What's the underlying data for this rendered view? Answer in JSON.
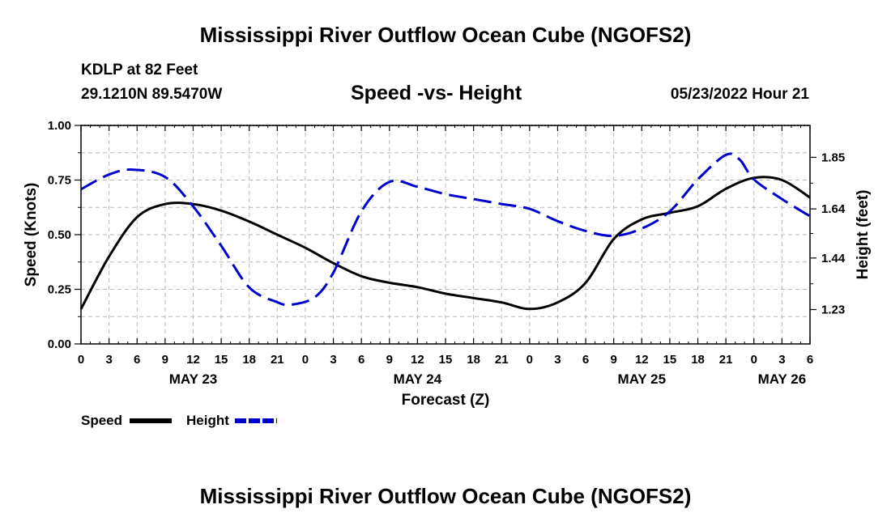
{
  "header": {
    "title": "Mississippi River Outflow Ocean Cube (NGOFS2)",
    "station": "KDLP at 82 Feet",
    "coords": "29.1210N  89.5470W",
    "subtitle": "Speed -vs- Height",
    "datetime": "05/23/2022 Hour 21"
  },
  "footer": {
    "title": "Mississippi River Outflow Ocean Cube (NGOFS2)"
  },
  "chart_data": {
    "type": "line",
    "title": "Speed -vs- Height",
    "xlabel": "Forecast (Z)",
    "ylabel": "Speed (Knots)",
    "y2label": "Height (feet)",
    "xlim": [
      0,
      78
    ],
    "ylim": [
      0,
      1
    ],
    "y2lim": [
      1.09,
      1.98
    ],
    "x_ticks": [
      0,
      3,
      6,
      9,
      12,
      15,
      18,
      21,
      24,
      27,
      30,
      33,
      36,
      39,
      42,
      45,
      48,
      51,
      54,
      57,
      60,
      63,
      66,
      69,
      72,
      75,
      78
    ],
    "x_tick_labels": [
      "0",
      "3",
      "6",
      "9",
      "12",
      "15",
      "18",
      "21",
      "0",
      "3",
      "6",
      "9",
      "12",
      "15",
      "18",
      "21",
      "0",
      "3",
      "6",
      "9",
      "12",
      "15",
      "18",
      "21",
      "0",
      "3",
      "6"
    ],
    "y_ticks": [
      0,
      0.25,
      0.5,
      0.75,
      1.0
    ],
    "y_tick_labels": [
      "0.00",
      "0.25",
      "0.50",
      "0.75",
      "1.00"
    ],
    "y2_ticks": [
      1.23,
      1.44,
      1.64,
      1.85
    ],
    "y2_tick_labels": [
      "1.23",
      "1.44",
      "1.64",
      "1.85"
    ],
    "date_labels": [
      {
        "x": 12,
        "label": "MAY 23"
      },
      {
        "x": 36,
        "label": "MAY 24"
      },
      {
        "x": 60,
        "label": "MAY 25"
      },
      {
        "x": 75,
        "label": "MAY 26"
      }
    ],
    "grid": true,
    "legend": [
      {
        "name": "Speed",
        "color": "#000000",
        "style": "solid"
      },
      {
        "name": "Height",
        "color": "#0000cc",
        "style": "dashed"
      }
    ],
    "series": [
      {
        "name": "Speed",
        "axis": "left",
        "color": "#000000",
        "style": "solid",
        "x": [
          0,
          3,
          6,
          9,
          12,
          15,
          18,
          21,
          24,
          27,
          30,
          33,
          36,
          39,
          42,
          45,
          48,
          51,
          54,
          57,
          60,
          63,
          66,
          69,
          72,
          75,
          78
        ],
        "values": [
          0.16,
          0.4,
          0.58,
          0.64,
          0.64,
          0.61,
          0.56,
          0.5,
          0.44,
          0.37,
          0.31,
          0.28,
          0.26,
          0.23,
          0.21,
          0.19,
          0.16,
          0.19,
          0.28,
          0.48,
          0.57,
          0.6,
          0.63,
          0.71,
          0.76,
          0.75,
          0.67
        ]
      },
      {
        "name": "Height",
        "axis": "right",
        "color": "#0000cc",
        "style": "dashed",
        "x": [
          0,
          3,
          5.5,
          9,
          12,
          15,
          18,
          21,
          22.5,
          25,
          27,
          30,
          33,
          36,
          39,
          42,
          45,
          48,
          51,
          54,
          57,
          60,
          63,
          66,
          69,
          70.5,
          72,
          75,
          78
        ],
        "values": [
          1.72,
          1.78,
          1.8,
          1.77,
          1.65,
          1.49,
          1.32,
          1.26,
          1.25,
          1.28,
          1.38,
          1.63,
          1.75,
          1.73,
          1.7,
          1.68,
          1.66,
          1.64,
          1.59,
          1.55,
          1.53,
          1.56,
          1.63,
          1.76,
          1.86,
          1.84,
          1.76,
          1.68,
          1.61
        ]
      }
    ]
  }
}
